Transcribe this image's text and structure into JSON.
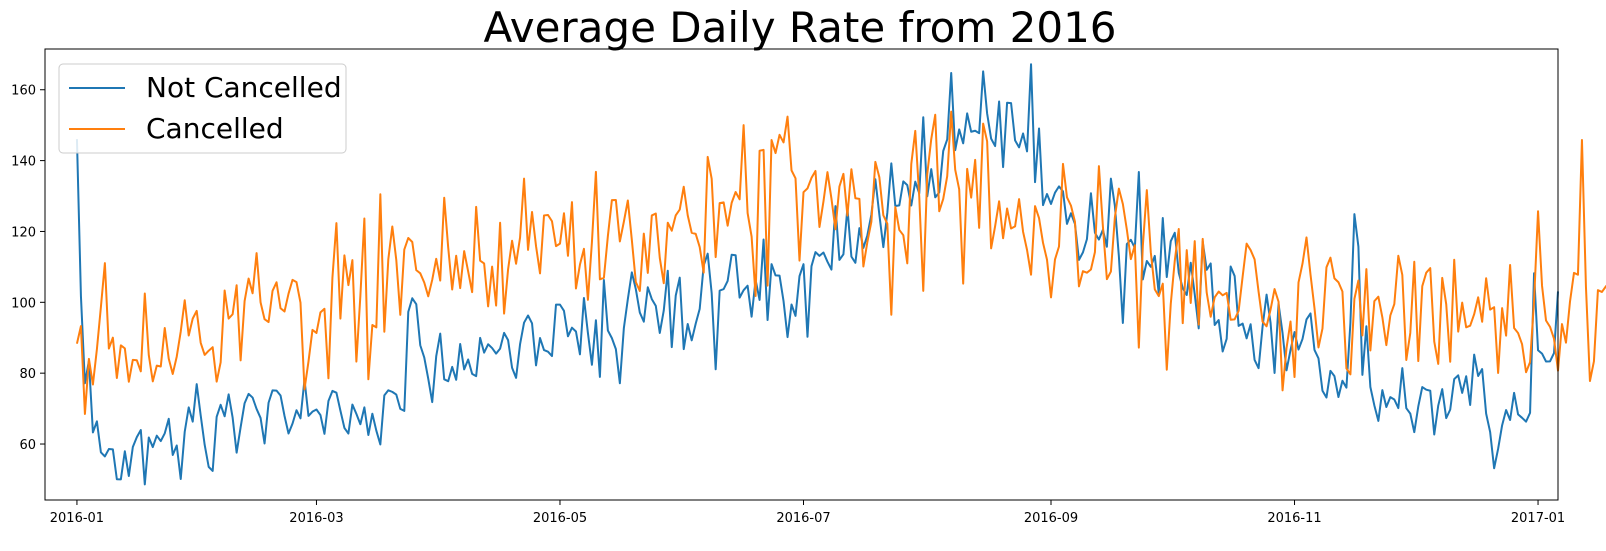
{
  "chart_data": {
    "type": "line",
    "title": "Average Daily Rate from 2016",
    "xlabel": "",
    "ylabel": "",
    "x_start": "2016-01-01",
    "x_end": "2016-12-31",
    "xlim": [
      "2015-12-24",
      "2017-01-06"
    ],
    "ylim": [
      44.2,
      171.5
    ],
    "x_ticks": [
      "2016-01",
      "2016-03",
      "2016-05",
      "2016-07",
      "2016-09",
      "2016-11",
      "2017-01"
    ],
    "y_ticks": [
      60,
      80,
      100,
      120,
      140,
      160
    ],
    "grid": false,
    "legend_position": "upper-left",
    "series": [
      {
        "name": "Not Cancelled",
        "color": "#1f77b4",
        "values": [
          146.07,
          101.77,
          77.16,
          83.49,
          63.28,
          66.4,
          57.67,
          56.51,
          58.58,
          58.5,
          50.07,
          50.02,
          57.96,
          50.98,
          59.15,
          61.94,
          63.95,
          48.61,
          61.85,
          59.14,
          62.36,
          60.83,
          63.03,
          67.12,
          56.91,
          59.59,
          50.12,
          63.46,
          70.34,
          66.32,
          76.9,
          68.07,
          59.77,
          53.55,
          52.4,
          67.69,
          71.07,
          67.83,
          74.01,
          67.46,
          57.56,
          64.71,
          71.52,
          74.16,
          73.11,
          69.91,
          67.36,
          60.16,
          71.65,
          75.15,
          75.08,
          73.71,
          67.91,
          62.97,
          65.76,
          69.54,
          67.26,
          78.18,
          67.93,
          69.14,
          69.74,
          68.17,
          62.88,
          72.14,
          74.98,
          74.49,
          69.42,
          64.55,
          62.96,
          71.14,
          68.51,
          65.59,
          70.35,
          62.54,
          68.55,
          63.76,
          59.88,
          73.74,
          75.17,
          74.72,
          73.95,
          69.91,
          69.35,
          97.3,
          101.14,
          99.48,
          87.88,
          84.44,
          78.45,
          71.84,
          84.78,
          91.16,
          78.27,
          77.73,
          81.77,
          78.13,
          88.23,
          81.06,
          83.86,
          79.81,
          79.15,
          89.96,
          85.8,
          88.15,
          87.09,
          85.52,
          86.94,
          91.38,
          89.33,
          81.52,
          78.68,
          88.17,
          94.25,
          96.28,
          94.07,
          82.2,
          89.92,
          86.53,
          86.07,
          84.84,
          99.34,
          99.35,
          97.59,
          90.41,
          92.84,
          91.76,
          85.31,
          101.22,
          91.33,
          82.36,
          94.94,
          78.94,
          106.29,
          92.04,
          89.89,
          86.79,
          77.14,
          92.7,
          100.9,
          108.45,
          103.7,
          97.1,
          94.54,
          104.24,
          100.91,
          99.0,
          91.35,
          97.71,
          108.92,
          87.35,
          101.93,
          106.97,
          86.79,
          93.89,
          89.27,
          93.99,
          98.16,
          110.41,
          113.72,
          102.58,
          81.1,
          103.3,
          103.74,
          106.05,
          113.43,
          113.29,
          101.33,
          103.42,
          104.68,
          95.94,
          106.35,
          100.67,
          117.73,
          95.0,
          110.79,
          107.59,
          107.52,
          100.33,
          90.19,
          99.38,
          96.17,
          107.39,
          110.76,
          90.27,
          110.19,
          114.16,
          113.12,
          114.06,
          111.46,
          109.24,
          127.15,
          111.97,
          113.55,
          126.65,
          112.9,
          111.16,
          120.94,
          115.35,
          118.93,
          124.75,
          134.73,
          124.75,
          115.57,
          125.28,
          139.22,
          127.18,
          127.36,
          134.14,
          133.07,
          127.32,
          134.06,
          130.75,
          152.24,
          129.92,
          137.6,
          129.64,
          131.0,
          142.71,
          145.96,
          164.74,
          142.95,
          148.8,
          144.87,
          153.32,
          148.15,
          148.43,
          147.74,
          165.19,
          153.3,
          146.2,
          144.1,
          156.68,
          138.16,
          156.33,
          156.21,
          145.7,
          143.74,
          147.65,
          142.61,
          167.2,
          133.91,
          149.07,
          127.43,
          130.57,
          127.76,
          130.95,
          132.72,
          131.32,
          122.14,
          125.13,
          122.12,
          111.97,
          114.09,
          117.83,
          130.79,
          119.65,
          117.71,
          120.47,
          115.69,
          134.91,
          127.22,
          113.02,
          94.17,
          116.45,
          117.65,
          115.36,
          136.77,
          106.46,
          111.67,
          110.02,
          113.1,
          102.36,
          123.79,
          107.14,
          117.26,
          119.63,
          108.36,
          103.98,
          102.06,
          111.17,
          102.28,
          92.64,
          117.13,
          109.17,
          110.97,
          93.6,
          95.0,
          86.12,
          89.69,
          110.1,
          107.41,
          93.34,
          94.0,
          89.84,
          93.82,
          83.72,
          81.42,
          93.19,
          102.16,
          94.18,
          80.06,
          99.57,
          91.32,
          80.8,
          86.55,
          91.61,
          86.66,
          89.66,
          95.17,
          96.87,
          86.56,
          84.2,
          75.03,
          73.12,
          80.66,
          79.16,
          73.27,
          77.86,
          75.91,
          94.16,
          124.9,
          115.71,
          79.51,
          93.23,
          76.09,
          70.89,
          66.52,
          75.21,
          70.44,
          73.24,
          72.57,
          70.15,
          81.44,
          70.11,
          68.58,
          63.35,
          70.6,
          76.08,
          75.34,
          75.04,
          62.69,
          70.86,
          75.49,
          67.31,
          69.71,
          78.31,
          79.39,
          74.43,
          79.14,
          71.02,
          85.24,
          79.2,
          81.16,
          68.58,
          63.42,
          53.16,
          58.64,
          65.28,
          69.59,
          66.78,
          74.45,
          68.37,
          67.4,
          66.32,
          68.8,
          108.2,
          86.46,
          85.52,
          83.29,
          83.34,
          85.68,
          103.08
        ]
      },
      {
        "name": "Cancelled",
        "color": "#ff7f0e",
        "values": [
          88.32,
          93.29,
          68.48,
          84.04,
          76.81,
          86.77,
          98.66,
          111.05,
          86.95,
          90.03,
          78.64,
          87.86,
          87.0,
          77.59,
          83.76,
          83.65,
          80.51,
          102.48,
          85.09,
          77.69,
          82.12,
          81.89,
          92.74,
          84.07,
          79.78,
          84.68,
          91.75,
          100.59,
          90.63,
          95.4,
          97.58,
          88.58,
          85.16,
          86.34,
          87.33,
          77.6,
          83.06,
          103.34,
          95.4,
          96.63,
          104.82,
          83.61,
          100.35,
          106.7,
          102.55,
          113.89,
          99.99,
          95.23,
          94.42,
          103.26,
          105.64,
          98.33,
          97.42,
          102.43,
          106.33,
          105.69,
          99.91,
          75.44,
          83.28,
          92.22,
          91.35,
          97.17,
          98.17,
          78.55,
          106.98,
          122.35,
          95.4,
          113.26,
          104.85,
          111.9,
          83.26,
          101.85,
          123.64,
          78.27,
          93.59,
          92.92,
          130.51,
          91.69,
          112.17,
          121.39,
          111.91,
          96.46,
          114.89,
          118.16,
          117.02,
          109.09,
          108.19,
          105.6,
          101.7,
          106.35,
          112.28,
          106.14,
          129.51,
          115.47,
          103.62,
          113.14,
          104.0,
          114.45,
          108.71,
          102.87,
          126.95,
          111.74,
          110.97,
          98.85,
          110.07,
          99.08,
          122.44,
          96.82,
          109.29,
          117.38,
          110.89,
          118.28,
          134.9,
          114.8,
          125.48,
          115.87,
          108.17,
          124.52,
          124.65,
          122.88,
          115.86,
          116.57,
          125.13,
          113.12,
          128.27,
          103.91,
          110.63,
          115.1,
          100.7,
          116.98,
          136.83,
          106.49,
          106.91,
          118.71,
          128.85,
          128.87,
          117.18,
          122.74,
          128.74,
          117.58,
          105.71,
          103.21,
          119.39,
          108.29,
          124.53,
          125.05,
          112.53,
          105.4,
          122.46,
          120.21,
          124.56,
          126.17,
          132.63,
          124.55,
          119.62,
          119.32,
          115.6,
          108.37,
          141.05,
          134.86,
          112.76,
          128.01,
          128.2,
          121.63,
          128.06,
          131.13,
          129.07,
          150.0,
          125.18,
          118.55,
          101.79,
          142.78,
          143.02,
          104.7,
          145.82,
          142.12,
          147.28,
          145.13,
          152.4,
          137.24,
          135.0,
          111.78,
          131.08,
          132.16,
          135.11,
          137.07,
          121.27,
          128.47,
          136.75,
          129.28,
          120.61,
          132.69,
          136.26,
          124.48,
          137.57,
          129.38,
          129.2,
          110.12,
          117.03,
          122.71,
          139.65,
          135.3,
          124.55,
          122.19,
          96.49,
          126.86,
          120.43,
          118.95,
          110.99,
          139.03,
          148.38,
          129.69,
          103.23,
          136.19,
          146.05,
          152.94,
          125.7,
          129.19,
          135.59,
          153.81,
          137.44,
          131.9,
          105.29,
          137.66,
          129.56,
          140.2,
          121.02,
          150.43,
          145.45,
          115.23,
          121.48,
          128.51,
          118.08,
          126.49,
          120.83,
          121.42,
          129.13,
          119.94,
          114.76,
          107.8,
          127.16,
          123.79,
          116.79,
          112.02,
          101.38,
          112.11,
          115.75,
          139.07,
          129.65,
          127.29,
          122.74,
          104.5,
          108.79,
          108.36,
          109.26,
          114.17,
          138.43,
          121.43,
          106.53,
          108.67,
          124.01,
          132.1,
          127.75,
          120.51,
          112.18,
          116.1,
          87.22,
          115.93,
          131.67,
          114.11,
          103.66,
          101.76,
          105.27,
          80.98,
          99.57,
          111.7,
          120.69,
          94.11,
          114.73,
          99.81,
          117.26,
          93.73,
          117.91,
          102.73,
          95.92,
          101.42,
          103.04,
          101.98,
          102.66,
          95.07,
          95.19,
          97.59,
          107.26,
          116.55,
          114.75,
          112.12,
          102.99,
          94.53,
          93.23,
          97.95,
          103.74,
          100.16,
          75.15,
          87.14,
          94.58,
          78.91,
          105.6,
          110.93,
          118.31,
          107.87,
          98.35,
          87.26,
          92.58,
          109.88,
          112.61,
          106.75,
          105.67,
          103.04,
          81.32,
          79.66,
          100.97,
          106.15,
          90.64,
          109.37,
          86.41,
          100.33,
          101.58,
          95.78,
          87.92,
          96.29,
          99.51,
          113.13,
          107.73,
          83.73,
          91.35,
          111.45,
          83.42,
          104.55,
          108.36,
          109.65,
          88.91,
          82.61,
          106.9,
          99.47,
          83.23,
          112.02,
          91.74,
          99.9,
          92.94,
          93.4,
          96.64,
          101.41,
          94.51,
          106.79,
          97.93,
          98.62,
          80.06,
          98.35,
          90.59,
          110.54,
          92.76,
          91.32,
          88.17,
          80.27,
          83.1,
          100.42,
          125.72,
          104.68,
          94.86,
          93.07,
          89.72,
          80.7,
          93.86,
          88.61,
          100.17,
          108.31,
          107.8,
          145.83,
          104.42,
          77.79,
          83.34,
          103.43,
          102.93,
          104.5,
          105.67,
          106.05,
          100.17,
          129.06
        ]
      }
    ]
  }
}
